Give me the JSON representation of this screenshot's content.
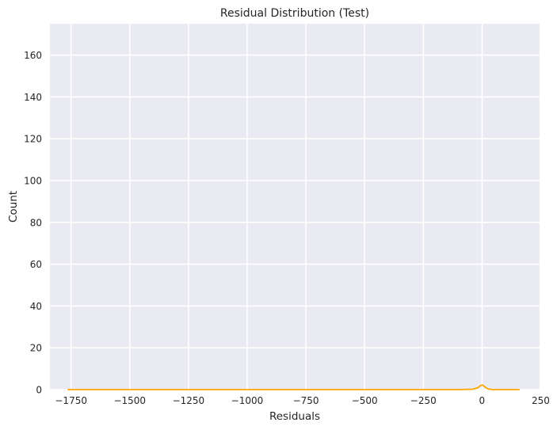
{
  "chart_data": {
    "type": "histogram",
    "title": "Residual Distribution (Test)",
    "xlabel": "Residuals",
    "ylabel": "Count",
    "xlim": [
      -1840,
      245
    ],
    "ylim": [
      0,
      175
    ],
    "x_ticks": [
      -1750,
      -1500,
      -1250,
      -1000,
      -750,
      -500,
      -250,
      0,
      250
    ],
    "x_tick_labels": [
      "−1750",
      "−1500",
      "−1250",
      "−1000",
      "−750",
      "−500",
      "−250",
      "0",
      "250"
    ],
    "y_ticks": [
      0,
      20,
      40,
      60,
      80,
      100,
      120,
      140,
      160
    ],
    "y_tick_labels": [
      "0",
      "20",
      "40",
      "60",
      "80",
      "100",
      "120",
      "140",
      "160"
    ],
    "grid": true,
    "background_color": "#eaeaf2",
    "grid_color": "#ffffff",
    "series": [
      {
        "type": "kde",
        "color": "#ffa500",
        "x": [
          -1765,
          -1000,
          -500,
          -100,
          -40,
          -20,
          -10,
          -5,
          0,
          5,
          10,
          20,
          30,
          50,
          100,
          160
        ],
        "y": [
          0,
          0,
          0,
          0,
          0.2,
          0.8,
          1.6,
          2.0,
          2.2,
          2.0,
          1.5,
          0.7,
          0.2,
          0,
          0,
          0
        ]
      }
    ]
  }
}
